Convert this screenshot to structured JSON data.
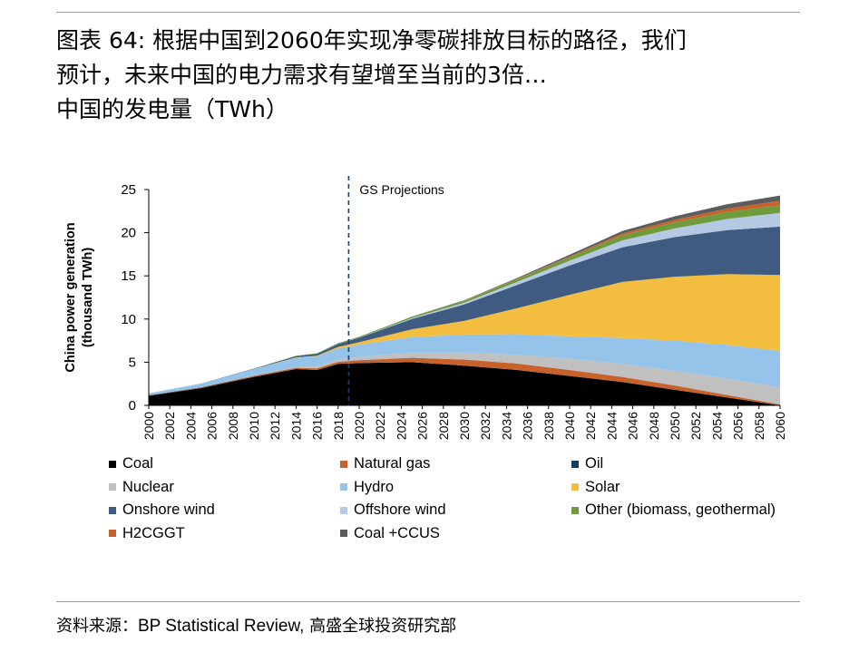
{
  "header": {
    "title_line1": "图表 64: 根据中国到2060年实现净零碳排放目标的路径，我们",
    "title_line2": "预计，未来中国的电力需求有望增至当前的3倍…",
    "title_line3": "中国的发电量（TWh）"
  },
  "footer": {
    "source_label": "资料来源：",
    "source_en": "BP Statistical Review,",
    "source_cn": " 高盛全球投资研究部"
  },
  "chart_data": {
    "type": "area",
    "stacked": true,
    "ylabel_line1": "China power generation",
    "ylabel_line2": "(thousand TWh)",
    "ylim": [
      0,
      25
    ],
    "yticks": [
      0,
      5,
      10,
      15,
      20,
      25
    ],
    "xlim": [
      2000,
      2060
    ],
    "xticks": [
      "2000",
      "2002",
      "2004",
      "2006",
      "2008",
      "2010",
      "2012",
      "2014",
      "2016",
      "2018",
      "2020",
      "2022",
      "2024",
      "2026",
      "2028",
      "2030",
      "2032",
      "2034",
      "2036",
      "2038",
      "2040",
      "2042",
      "2044",
      "2046",
      "2048",
      "2050",
      "2052",
      "2054",
      "2056",
      "2058",
      "2060"
    ],
    "annotation": {
      "text": "GS Projections",
      "x": 2019
    },
    "grid": false,
    "legend_position": "bottom",
    "x": [
      2000,
      2005,
      2010,
      2014,
      2016,
      2018,
      2020,
      2025,
      2030,
      2035,
      2040,
      2045,
      2050,
      2055,
      2060
    ],
    "series": [
      {
        "name": "Coal",
        "color": "#000000",
        "values": [
          1.1,
          2.0,
          3.3,
          4.2,
          4.1,
          4.8,
          4.9,
          5.0,
          4.6,
          4.1,
          3.4,
          2.7,
          1.8,
          0.9,
          0.0
        ]
      },
      {
        "name": "Natural gas",
        "color": "#c8622c",
        "values": [
          0.0,
          0.05,
          0.1,
          0.12,
          0.18,
          0.22,
          0.3,
          0.5,
          0.7,
          0.75,
          0.7,
          0.6,
          0.5,
          0.3,
          0.1
        ]
      },
      {
        "name": "Oil",
        "color": "#163a5f",
        "values": [
          0.05,
          0.05,
          0.03,
          0.02,
          0.02,
          0.02,
          0.02,
          0.01,
          0.0,
          0.0,
          0.0,
          0.0,
          0.0,
          0.0,
          0.0
        ]
      },
      {
        "name": "Nuclear",
        "color": "#c0c0c0",
        "values": [
          0.02,
          0.05,
          0.08,
          0.13,
          0.2,
          0.3,
          0.4,
          0.6,
          0.8,
          1.0,
          1.3,
          1.5,
          1.7,
          1.9,
          2.0
        ]
      },
      {
        "name": "Hydro",
        "color": "#95c3ea",
        "values": [
          0.22,
          0.4,
          0.7,
          1.05,
          1.18,
          1.25,
          1.4,
          1.8,
          2.1,
          2.4,
          2.6,
          3.0,
          3.5,
          3.9,
          4.2
        ]
      },
      {
        "name": "Solar",
        "color": "#f3bd3f",
        "values": [
          0.0,
          0.0,
          0.0,
          0.03,
          0.07,
          0.18,
          0.3,
          0.9,
          1.6,
          3.0,
          4.8,
          6.5,
          7.4,
          8.2,
          8.8
        ]
      },
      {
        "name": "Onshore wind",
        "color": "#3f5b82",
        "values": [
          0.0,
          0.0,
          0.04,
          0.15,
          0.22,
          0.35,
          0.5,
          1.2,
          1.9,
          2.7,
          3.4,
          4.0,
          4.6,
          5.1,
          5.6
        ]
      },
      {
        "name": "Offshore wind",
        "color": "#b5c9e2",
        "values": [
          0.0,
          0.0,
          0.0,
          0.0,
          0.0,
          0.01,
          0.02,
          0.1,
          0.2,
          0.35,
          0.55,
          0.8,
          1.0,
          1.3,
          1.6
        ]
      },
      {
        "name": "Other (biomass, geothermal)",
        "color": "#6f9b3d",
        "values": [
          0.0,
          0.0,
          0.02,
          0.05,
          0.07,
          0.08,
          0.1,
          0.15,
          0.22,
          0.3,
          0.4,
          0.6,
          0.7,
          0.8,
          0.9
        ]
      },
      {
        "name": "H2CGGT",
        "color": "#c8622c",
        "values": [
          0.0,
          0.0,
          0.0,
          0.0,
          0.0,
          0.0,
          0.0,
          0.0,
          0.02,
          0.05,
          0.1,
          0.2,
          0.3,
          0.4,
          0.5
        ]
      },
      {
        "name": "Coal +CCUS",
        "color": "#5c5c5c",
        "values": [
          0.0,
          0.0,
          0.0,
          0.0,
          0.0,
          0.0,
          0.0,
          0.02,
          0.05,
          0.1,
          0.2,
          0.3,
          0.4,
          0.5,
          0.6
        ]
      }
    ]
  }
}
